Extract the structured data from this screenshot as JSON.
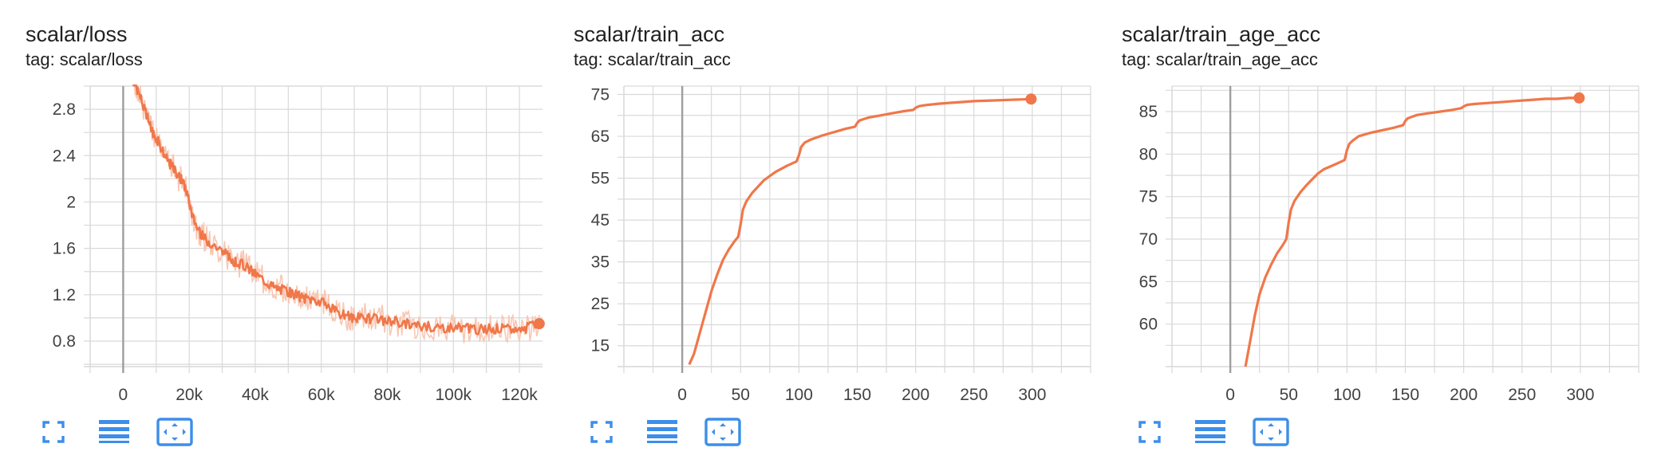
{
  "colors": {
    "accent": "#f0774a",
    "raw_line": "#f8c7b3",
    "grid": "#d9d9d9",
    "zero_line": "#9e9e9e",
    "tool_icon": "#3d8ee9"
  },
  "icons": [
    "fullscreen-icon",
    "list-icon",
    "fit-domain-icon"
  ],
  "cards": [
    {
      "title": "scalar/loss",
      "tag": "tag: scalar/loss"
    },
    {
      "title": "scalar/train_acc",
      "tag": "tag: scalar/train_acc"
    },
    {
      "title": "scalar/train_age_acc",
      "tag": "tag: scalar/train_age_acc"
    }
  ],
  "chart_data": [
    {
      "type": "line",
      "title": "scalar/loss",
      "xlim": [
        -10000,
        127000
      ],
      "ylim": [
        0.58,
        3.0
      ],
      "x_ticks": [
        0,
        20000,
        40000,
        60000,
        80000,
        100000,
        120000
      ],
      "x_tick_labels": [
        "0",
        "20k",
        "40k",
        "60k",
        "80k",
        "100k",
        "120k"
      ],
      "y_ticks": [
        0.8,
        1.2,
        1.6,
        2.0,
        2.4,
        2.8
      ],
      "y_tick_labels": [
        "0.8",
        "1.2",
        "1.6",
        "2",
        "2.4",
        "2.8"
      ],
      "grid": true,
      "has_raw_series": true,
      "series": [
        {
          "x": [
            3000,
            5000,
            7000,
            9000,
            11000,
            13000,
            15000,
            17000,
            19000,
            21000,
            23000,
            25000,
            28000,
            31000,
            34000,
            37000,
            40000,
            43000,
            46000,
            49000,
            52000,
            55000,
            58000,
            61000,
            64000,
            67000,
            70000,
            74000,
            78000,
            82000,
            86000,
            90000,
            94000,
            98000,
            102000,
            106000,
            110000,
            114000,
            118000,
            122000,
            126000
          ],
          "y": [
            3.05,
            2.92,
            2.75,
            2.6,
            2.5,
            2.38,
            2.3,
            2.22,
            2.12,
            1.88,
            1.74,
            1.68,
            1.62,
            1.55,
            1.48,
            1.45,
            1.38,
            1.32,
            1.26,
            1.24,
            1.2,
            1.17,
            1.16,
            1.12,
            1.06,
            1.02,
            1.0,
            1.0,
            0.98,
            0.97,
            0.95,
            0.93,
            0.92,
            0.92,
            0.91,
            0.9,
            0.9,
            0.91,
            0.9,
            0.91,
            0.95
          ]
        }
      ]
    },
    {
      "type": "line",
      "title": "scalar/train_acc",
      "xlim": [
        -50,
        350
      ],
      "ylim": [
        10,
        77
      ],
      "x_ticks": [
        0,
        50,
        100,
        150,
        200,
        250,
        300
      ],
      "x_tick_labels": [
        "0",
        "50",
        "100",
        "150",
        "200",
        "250",
        "300"
      ],
      "y_ticks": [
        15,
        25,
        35,
        45,
        55,
        65,
        75
      ],
      "y_tick_labels": [
        "15",
        "25",
        "35",
        "45",
        "55",
        "65",
        "75"
      ],
      "grid": true,
      "has_raw_series": false,
      "series": [
        {
          "x": [
            6,
            10,
            15,
            20,
            25,
            30,
            35,
            40,
            45,
            48,
            50,
            52,
            55,
            60,
            65,
            70,
            80,
            90,
            98,
            100,
            102,
            105,
            110,
            120,
            130,
            140,
            148,
            150,
            152,
            160,
            170,
            180,
            190,
            198,
            200,
            203,
            210,
            220,
            230,
            240,
            250,
            260,
            270,
            280,
            290,
            299
          ],
          "y": [
            10.5,
            13,
            18,
            23,
            28,
            32,
            35.5,
            38,
            40,
            41,
            44,
            47.5,
            49.5,
            51.5,
            53,
            54.5,
            56.5,
            58,
            59,
            60.5,
            62.5,
            63.5,
            64.2,
            65.2,
            66.0,
            66.8,
            67.3,
            68.2,
            68.8,
            69.5,
            70.0,
            70.5,
            71.0,
            71.3,
            71.8,
            72.2,
            72.5,
            72.8,
            73.0,
            73.2,
            73.4,
            73.5,
            73.6,
            73.7,
            73.8,
            73.9
          ]
        }
      ]
    },
    {
      "type": "line",
      "title": "scalar/train_age_acc",
      "xlim": [
        -50,
        350
      ],
      "ylim": [
        55,
        88
      ],
      "x_ticks": [
        0,
        50,
        100,
        150,
        200,
        250,
        300
      ],
      "x_tick_labels": [
        "0",
        "50",
        "100",
        "150",
        "200",
        "250",
        "300"
      ],
      "y_ticks": [
        60,
        65,
        70,
        75,
        80,
        85
      ],
      "y_tick_labels": [
        "60",
        "65",
        "70",
        "75",
        "80",
        "85"
      ],
      "grid": true,
      "has_raw_series": false,
      "series": [
        {
          "x": [
            13,
            17,
            21,
            25,
            30,
            35,
            40,
            45,
            48,
            50,
            52,
            55,
            60,
            65,
            70,
            75,
            80,
            90,
            98,
            100,
            102,
            105,
            110,
            120,
            130,
            140,
            148,
            150,
            152,
            160,
            170,
            180,
            190,
            198,
            200,
            203,
            210,
            220,
            230,
            240,
            250,
            260,
            270,
            280,
            290,
            299
          ],
          "y": [
            55,
            58,
            61,
            63.5,
            65.5,
            67,
            68.3,
            69.3,
            70,
            72,
            73.5,
            74.5,
            75.5,
            76.3,
            77,
            77.7,
            78.2,
            78.8,
            79.3,
            80.5,
            81.2,
            81.6,
            82.1,
            82.5,
            82.8,
            83.1,
            83.4,
            83.9,
            84.2,
            84.6,
            84.8,
            85.0,
            85.2,
            85.4,
            85.6,
            85.8,
            85.9,
            86.0,
            86.1,
            86.2,
            86.3,
            86.4,
            86.5,
            86.5,
            86.6,
            86.6
          ]
        }
      ]
    }
  ]
}
